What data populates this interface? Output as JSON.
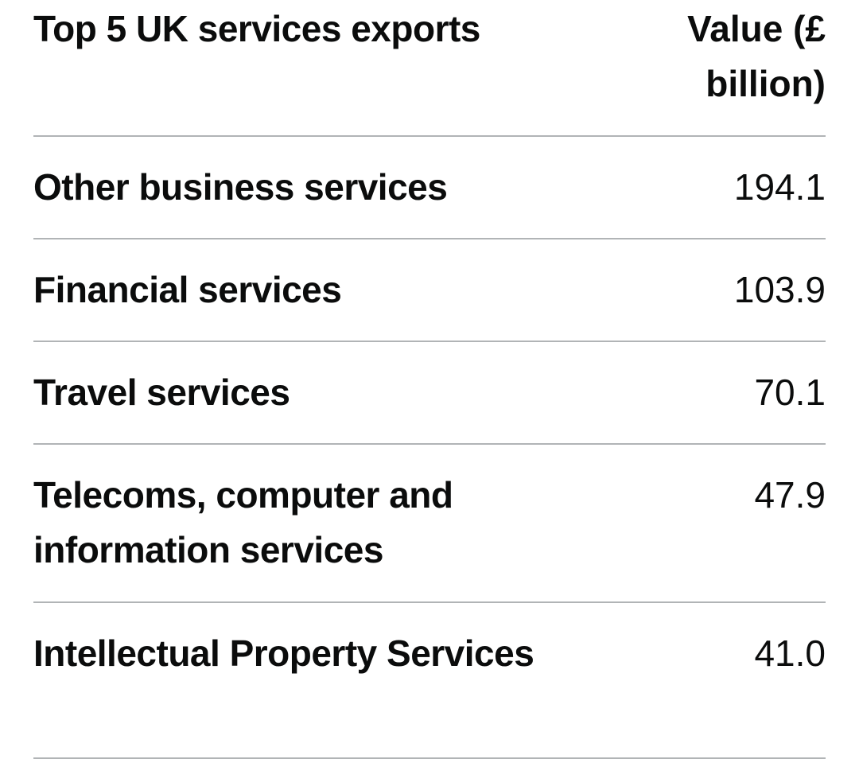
{
  "table": {
    "header": {
      "label": "Top 5 UK services exports",
      "value": "Value (£ billion)"
    },
    "rows": [
      {
        "label": "Other business services",
        "value": "194.1"
      },
      {
        "label": "Financial services",
        "value": "103.9"
      },
      {
        "label": "Travel services",
        "value": "70.1"
      },
      {
        "label": "Telecoms, computer and information services",
        "value": "47.9"
      },
      {
        "label": "Intellectual Property Services",
        "value": "41.0"
      }
    ]
  }
}
